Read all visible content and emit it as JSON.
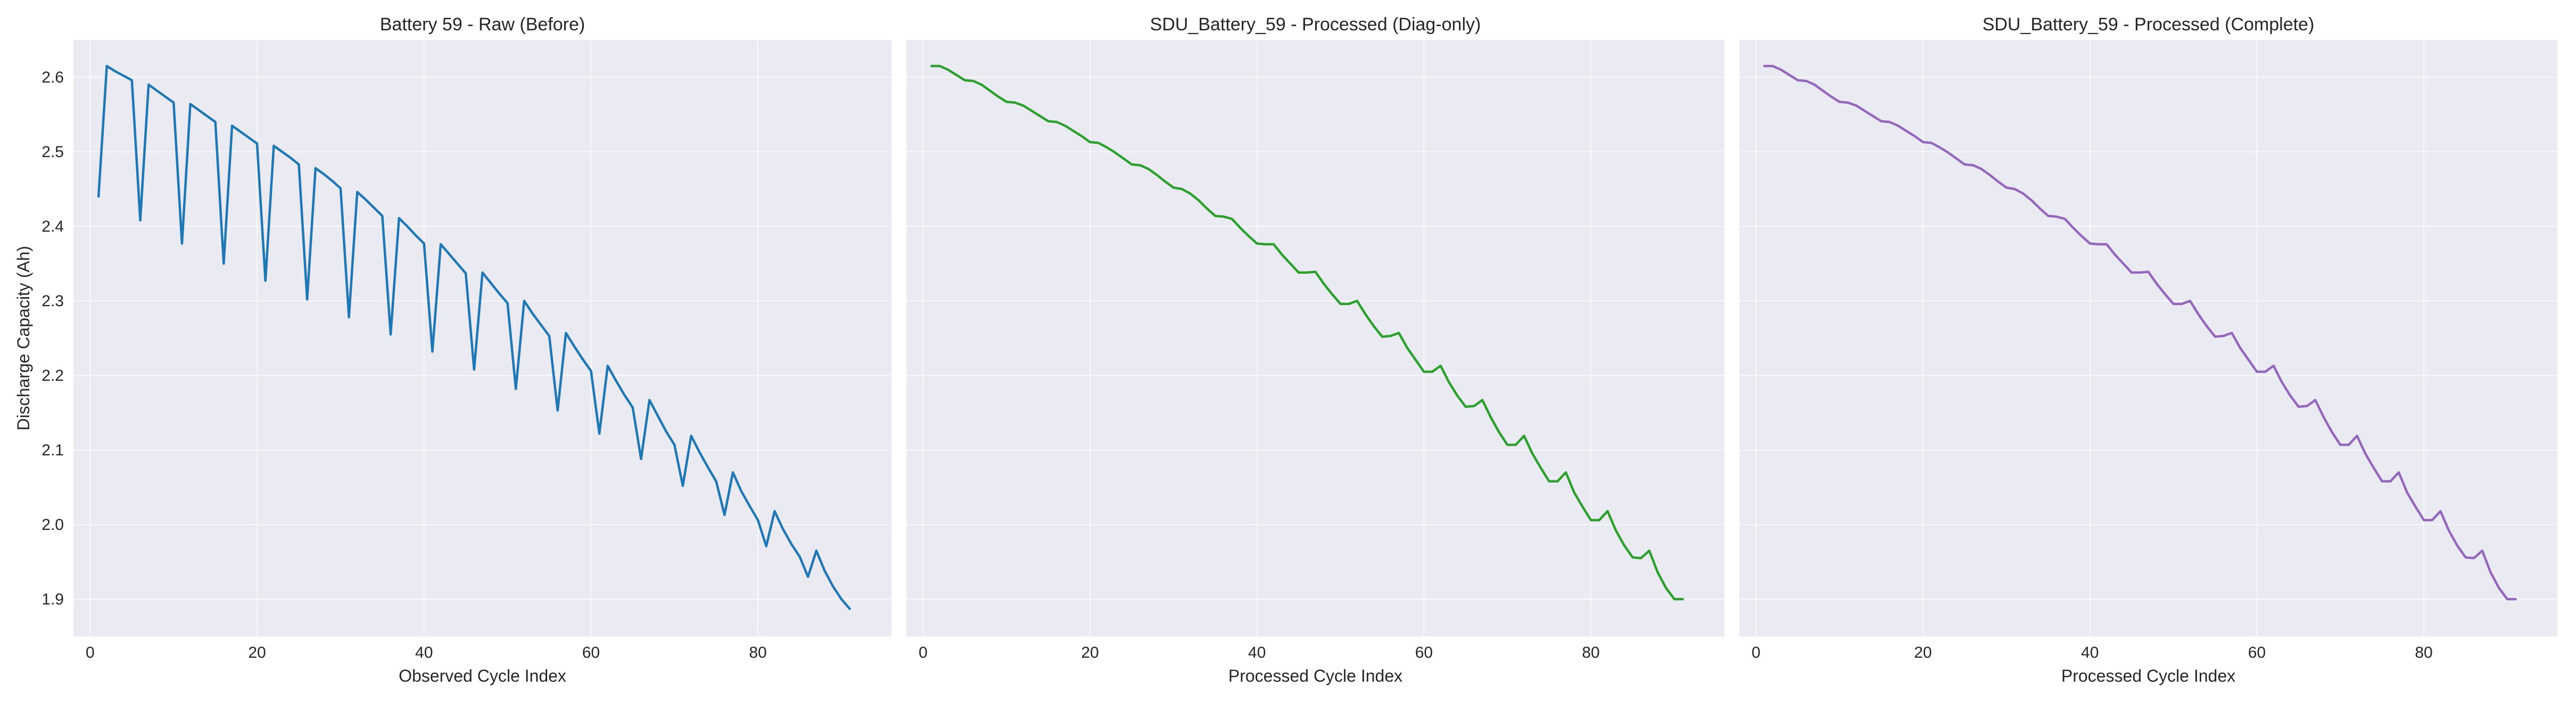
{
  "chart_data": [
    {
      "type": "line",
      "title": "Battery 59 - Raw (Before)",
      "xlabel": "Observed Cycle Index",
      "ylabel": "Discharge Capacity (Ah)",
      "color": "#1f77b4",
      "xlim": [
        -2,
        96
      ],
      "ylim": [
        1.85,
        2.65
      ],
      "xticks": [
        0,
        20,
        40,
        60,
        80
      ],
      "yticks": [
        1.9,
        2.0,
        2.1,
        2.2,
        2.3,
        2.4,
        2.5,
        2.6
      ],
      "grid": true,
      "x": [
        1,
        2,
        3,
        4,
        5,
        6,
        7,
        8,
        9,
        10,
        11,
        12,
        13,
        14,
        15,
        16,
        17,
        18,
        19,
        20,
        21,
        22,
        23,
        24,
        25,
        26,
        27,
        28,
        29,
        30,
        31,
        32,
        33,
        34,
        35,
        36,
        37,
        38,
        39,
        40,
        41,
        42,
        43,
        44,
        45,
        46,
        47,
        48,
        49,
        50,
        51,
        52,
        53,
        54,
        55,
        56,
        57,
        58,
        59,
        60,
        61,
        62,
        63,
        64,
        65,
        66,
        67,
        68,
        69,
        70,
        71,
        72,
        73,
        74,
        75,
        76,
        77,
        78,
        79,
        80,
        81,
        82,
        83,
        84,
        85,
        86,
        87,
        88,
        89,
        90,
        91
      ],
      "y": [
        2.44,
        2.615,
        2.608,
        2.602,
        2.596,
        2.408,
        2.59,
        2.582,
        2.574,
        2.566,
        2.377,
        2.564,
        2.556,
        2.548,
        2.54,
        2.35,
        2.535,
        2.527,
        2.519,
        2.511,
        2.327,
        2.508,
        2.5,
        2.492,
        2.483,
        2.302,
        2.478,
        2.47,
        2.461,
        2.451,
        2.278,
        2.446,
        2.436,
        2.425,
        2.414,
        2.255,
        2.411,
        2.4,
        2.388,
        2.377,
        2.232,
        2.376,
        2.363,
        2.35,
        2.337,
        2.208,
        2.338,
        2.324,
        2.31,
        2.297,
        2.182,
        2.3,
        2.283,
        2.268,
        2.253,
        2.153,
        2.257,
        2.239,
        2.222,
        2.206,
        2.122,
        2.213,
        2.193,
        2.174,
        2.157,
        2.088,
        2.167,
        2.146,
        2.125,
        2.107,
        2.052,
        2.119,
        2.097,
        2.077,
        2.058,
        2.013,
        2.07,
        2.045,
        2.025,
        2.006,
        1.971,
        2.018,
        1.994,
        1.974,
        1.957,
        1.93,
        1.965,
        1.938,
        1.917,
        1.9,
        1.887
      ]
    },
    {
      "type": "line",
      "title": "SDU_Battery_59 - Processed (Diag-only)",
      "xlabel": "Processed Cycle Index",
      "ylabel": "",
      "color": "#2ca02c",
      "xlim": [
        -2,
        96
      ],
      "ylim": [
        1.85,
        2.65
      ],
      "xticks": [
        0,
        20,
        40,
        60,
        80
      ],
      "yticks": [
        1.9,
        2.0,
        2.1,
        2.2,
        2.3,
        2.4,
        2.5,
        2.6
      ],
      "grid": true,
      "x": [
        1,
        2,
        3,
        4,
        5,
        6,
        7,
        8,
        9,
        10,
        11,
        12,
        13,
        14,
        15,
        16,
        17,
        18,
        19,
        20,
        21,
        22,
        23,
        24,
        25,
        26,
        27,
        28,
        29,
        30,
        31,
        32,
        33,
        34,
        35,
        36,
        37,
        38,
        39,
        40,
        41,
        42,
        43,
        44,
        45,
        46,
        47,
        48,
        49,
        50,
        51,
        52,
        53,
        54,
        55,
        56,
        57,
        58,
        59,
        60,
        61,
        62,
        63,
        64,
        65,
        66,
        67,
        68,
        69,
        70,
        71,
        72,
        73,
        74,
        75,
        76,
        77,
        78,
        79,
        80,
        81,
        82,
        83,
        84,
        85,
        86,
        87,
        88,
        89,
        90,
        91
      ],
      "y": [
        2.615,
        2.615,
        2.61,
        2.603,
        2.596,
        2.595,
        2.59,
        2.582,
        2.574,
        2.567,
        2.566,
        2.562,
        2.555,
        2.548,
        2.541,
        2.54,
        2.535,
        2.528,
        2.521,
        2.513,
        2.512,
        2.506,
        2.499,
        2.491,
        2.483,
        2.482,
        2.477,
        2.469,
        2.46,
        2.452,
        2.45,
        2.444,
        2.435,
        2.424,
        2.414,
        2.413,
        2.41,
        2.398,
        2.387,
        2.377,
        2.376,
        2.376,
        2.362,
        2.35,
        2.338,
        2.338,
        2.339,
        2.323,
        2.309,
        2.296,
        2.296,
        2.3,
        2.282,
        2.266,
        2.252,
        2.253,
        2.257,
        2.237,
        2.221,
        2.205,
        2.205,
        2.213,
        2.191,
        2.173,
        2.158,
        2.159,
        2.167,
        2.144,
        2.124,
        2.107,
        2.107,
        2.119,
        2.095,
        2.076,
        2.058,
        2.058,
        2.07,
        2.043,
        2.024,
        2.006,
        2.006,
        2.018,
        1.992,
        1.972,
        1.956,
        1.955,
        1.965,
        1.936,
        1.915,
        1.9,
        1.9
      ]
    },
    {
      "type": "line",
      "title": "SDU_Battery_59 - Processed (Complete)",
      "xlabel": "Processed Cycle Index",
      "ylabel": "",
      "color": "#9467bd",
      "xlim": [
        -2,
        96
      ],
      "ylim": [
        1.85,
        2.65
      ],
      "xticks": [
        0,
        20,
        40,
        60,
        80
      ],
      "yticks": [
        1.9,
        2.0,
        2.1,
        2.2,
        2.3,
        2.4,
        2.5,
        2.6
      ],
      "grid": true,
      "x": [
        1,
        2,
        3,
        4,
        5,
        6,
        7,
        8,
        9,
        10,
        11,
        12,
        13,
        14,
        15,
        16,
        17,
        18,
        19,
        20,
        21,
        22,
        23,
        24,
        25,
        26,
        27,
        28,
        29,
        30,
        31,
        32,
        33,
        34,
        35,
        36,
        37,
        38,
        39,
        40,
        41,
        42,
        43,
        44,
        45,
        46,
        47,
        48,
        49,
        50,
        51,
        52,
        53,
        54,
        55,
        56,
        57,
        58,
        59,
        60,
        61,
        62,
        63,
        64,
        65,
        66,
        67,
        68,
        69,
        70,
        71,
        72,
        73,
        74,
        75,
        76,
        77,
        78,
        79,
        80,
        81,
        82,
        83,
        84,
        85,
        86,
        87,
        88,
        89,
        90,
        91
      ],
      "y": [
        2.615,
        2.615,
        2.61,
        2.603,
        2.596,
        2.595,
        2.59,
        2.582,
        2.574,
        2.567,
        2.566,
        2.562,
        2.555,
        2.548,
        2.541,
        2.54,
        2.535,
        2.528,
        2.521,
        2.513,
        2.512,
        2.506,
        2.499,
        2.491,
        2.483,
        2.482,
        2.477,
        2.469,
        2.46,
        2.452,
        2.45,
        2.444,
        2.435,
        2.424,
        2.414,
        2.413,
        2.41,
        2.398,
        2.387,
        2.377,
        2.376,
        2.376,
        2.362,
        2.35,
        2.338,
        2.338,
        2.339,
        2.323,
        2.309,
        2.296,
        2.296,
        2.3,
        2.282,
        2.266,
        2.252,
        2.253,
        2.257,
        2.237,
        2.221,
        2.205,
        2.205,
        2.213,
        2.191,
        2.173,
        2.158,
        2.159,
        2.167,
        2.144,
        2.124,
        2.107,
        2.107,
        2.119,
        2.095,
        2.076,
        2.058,
        2.058,
        2.07,
        2.043,
        2.024,
        2.006,
        2.006,
        2.018,
        1.992,
        1.972,
        1.956,
        1.955,
        1.965,
        1.936,
        1.915,
        1.9,
        1.9
      ]
    }
  ]
}
